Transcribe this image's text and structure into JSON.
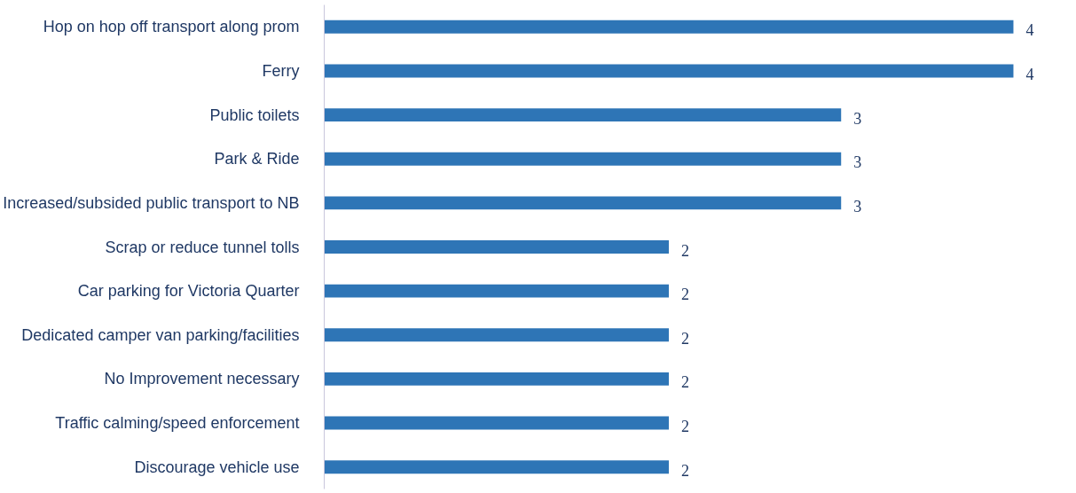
{
  "chart_data": {
    "type": "bar",
    "orientation": "horizontal",
    "categories": [
      "Hop on hop off transport along prom",
      "Ferry",
      "Public toilets",
      "Park & Ride",
      "Increased/subsided public transport to NB",
      "Scrap or reduce tunnel tolls",
      "Car parking for Victoria Quarter",
      "Dedicated camper van parking/facilities",
      "No Improvement necessary",
      "Traffic calming/speed enforcement",
      "Discourage vehicle use"
    ],
    "values": [
      4,
      4,
      3,
      3,
      3,
      2,
      2,
      2,
      2,
      2,
      2
    ],
    "color": "#2e75b6",
    "data_labels": true
  }
}
